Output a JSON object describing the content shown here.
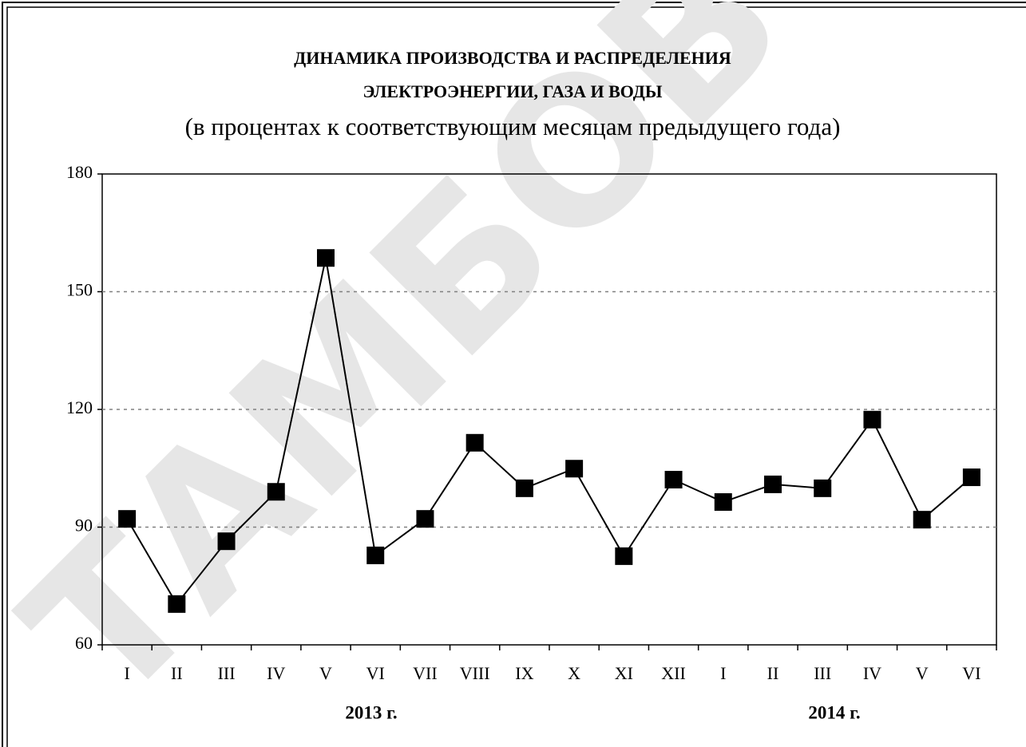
{
  "chart_data": {
    "type": "line",
    "title": [
      "ДИНАМИКА ПРОИЗВОДСТВА И РАСПРЕДЕЛЕНИЯ",
      "ЭЛЕКТРОЭНЕРГИИ, ГАЗА И ВОДЫ"
    ],
    "subtitle": "(в процентах к соответствующим месяцам предыдущего года)",
    "watermark": "ТАМБОВ",
    "year_labels": [
      "2013 г.",
      "2014 г."
    ],
    "categories": [
      "I",
      "II",
      "III",
      "IV",
      "V",
      "VI",
      "VII",
      "VIII",
      "IX",
      "X",
      "XI",
      "XII",
      "I",
      "II",
      "III",
      "IV",
      "V",
      "VI"
    ],
    "values": [
      92.1,
      70.4,
      86.4,
      99.0,
      158.6,
      82.8,
      92.1,
      111.5,
      99.9,
      104.9,
      82.6,
      102.1,
      96.4,
      100.9,
      99.9,
      117.4,
      91.9,
      102.7
    ],
    "color": "#000000",
    "ylim": [
      60,
      180
    ],
    "yticks": [
      60,
      90,
      120,
      150,
      180
    ],
    "grid": true
  }
}
